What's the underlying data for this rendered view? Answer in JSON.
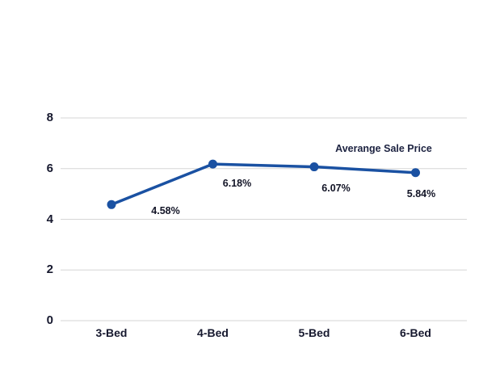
{
  "chart_data": {
    "type": "line",
    "legend": "Averange Sale Price",
    "legend_position": "inside-top-right",
    "categories": [
      "3-Bed",
      "4-Bed",
      "5-Bed",
      "6-Bed"
    ],
    "series": [
      {
        "name": "Averange Sale Price",
        "values": [
          4.58,
          6.18,
          6.07,
          5.84
        ]
      }
    ],
    "point_labels": [
      "4.58%",
      "6.18%",
      "6.07%",
      "5.84%"
    ],
    "y_ticks": [
      0,
      2,
      4,
      6,
      8
    ],
    "ylim": [
      0,
      8
    ],
    "xlabel": "",
    "ylabel": "",
    "grid": "horizontal",
    "colors": {
      "line": "#1a51a2",
      "marker": "#1a51a2",
      "gridline": "#d6d6d6",
      "axis_text": "#16182e",
      "label_text": "#121426",
      "background": "#ffffff"
    }
  }
}
